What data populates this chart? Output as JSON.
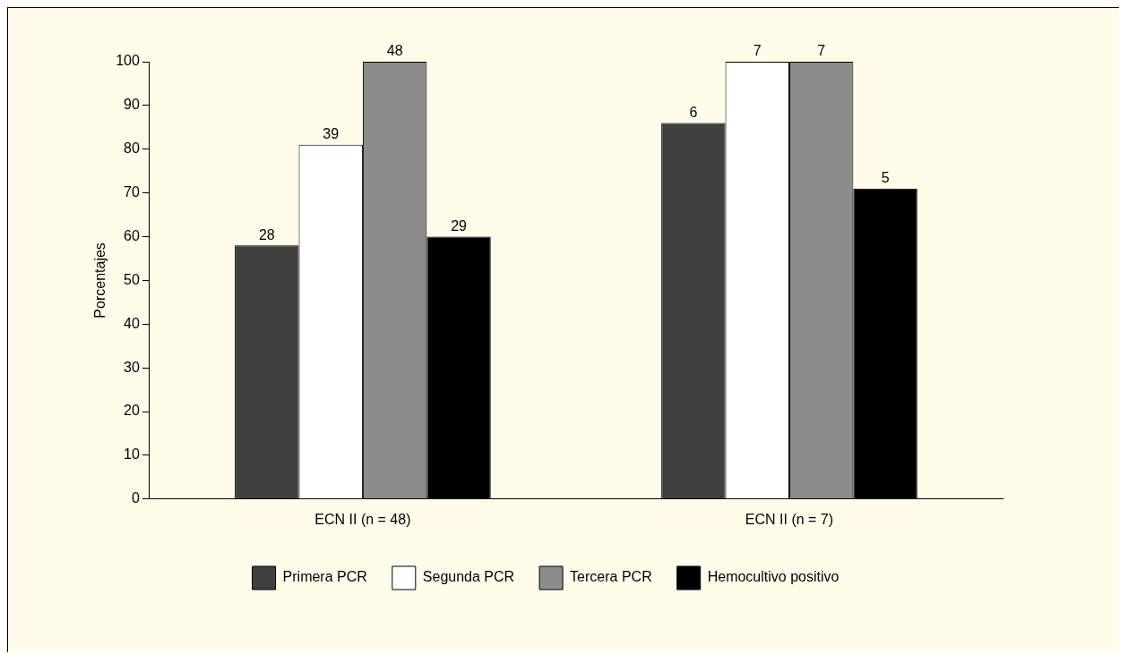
{
  "chart_data": {
    "type": "bar",
    "ylabel": "Porcentajes",
    "categories": [
      "ECN II (n = 48)",
      "ECN II (n = 7)"
    ],
    "series": [
      {
        "name": "Primera PCR",
        "color": "#404040",
        "values": [
          58,
          86
        ]
      },
      {
        "name": "Segunda PCR",
        "color": "#ffffff",
        "values": [
          81,
          100
        ]
      },
      {
        "name": "Tercera PCR",
        "color": "#8c8c8c",
        "values": [
          100,
          100
        ]
      },
      {
        "name": "Hemocultivo positivo",
        "color": "#000000",
        "values": [
          60,
          71
        ]
      }
    ],
    "annotations": [
      "28",
      "39",
      "48",
      "29",
      "6",
      "7",
      "7",
      "5"
    ],
    "ylim": [
      0,
      100
    ],
    "yticks": [
      0,
      10,
      20,
      30,
      40,
      50,
      60,
      70,
      80,
      90,
      100
    ],
    "grid": false,
    "legend": "bottom"
  }
}
